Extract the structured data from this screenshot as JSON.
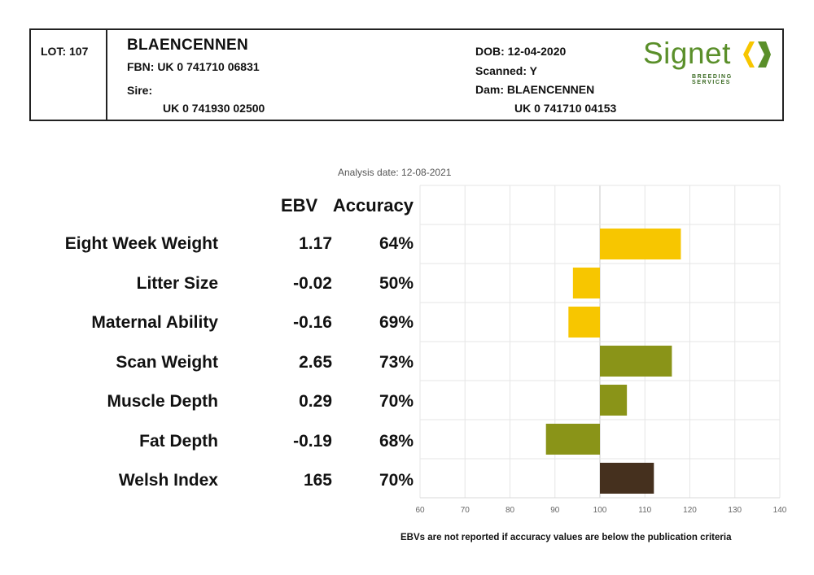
{
  "header": {
    "lot": "LOT: 107",
    "name": "BLAENCENNEN",
    "fbn": "FBN: UK 0 741710 06831",
    "sire_label": "Sire:",
    "sire_id": "UK 0 741930 02500",
    "dob": "DOB: 12-04-2020",
    "scanned": "Scanned: Y",
    "dam": "Dam: BLAENCENNEN",
    "dam_id": "UK 0 741710 04153"
  },
  "logo": {
    "text": "Signet",
    "subtext": "BREEDING SERVICES",
    "color": "#5a8f2a"
  },
  "analysis_date": "Analysis date: 12-08-2021",
  "columns": {
    "ebv": "EBV",
    "accuracy": "Accuracy"
  },
  "rows": [
    {
      "label": "Eight Week Weight",
      "ebv": "1.17",
      "accuracy": "64%"
    },
    {
      "label": "Litter Size",
      "ebv": "-0.02",
      "accuracy": "50%"
    },
    {
      "label": "Maternal Ability",
      "ebv": "-0.16",
      "accuracy": "69%"
    },
    {
      "label": "Scan Weight",
      "ebv": "2.65",
      "accuracy": "73%"
    },
    {
      "label": "Muscle Depth",
      "ebv": "0.29",
      "accuracy": "70%"
    },
    {
      "label": "Fat Depth",
      "ebv": "-0.19",
      "accuracy": "68%"
    },
    {
      "label": "Welsh Index",
      "ebv": "165",
      "accuracy": "70%"
    }
  ],
  "chart_data": {
    "type": "bar",
    "orientation": "horizontal",
    "baseline": 100,
    "categories": [
      "Eight Week Weight",
      "Litter Size",
      "Maternal Ability",
      "Scan Weight",
      "Muscle Depth",
      "Fat Depth",
      "Welsh Index"
    ],
    "values": [
      118,
      94,
      93,
      116,
      106,
      88,
      112
    ],
    "colors": [
      "#f7c600",
      "#f7c600",
      "#f7c600",
      "#8a9418",
      "#8a9418",
      "#8a9418",
      "#45301e"
    ],
    "xlim": [
      60,
      140
    ],
    "xticks": [
      "60",
      "70",
      "80",
      "90",
      "100",
      "110",
      "120",
      "130",
      "140"
    ],
    "grid": true
  },
  "footer": "EBVs are not reported if accuracy values are below the publication criteria"
}
